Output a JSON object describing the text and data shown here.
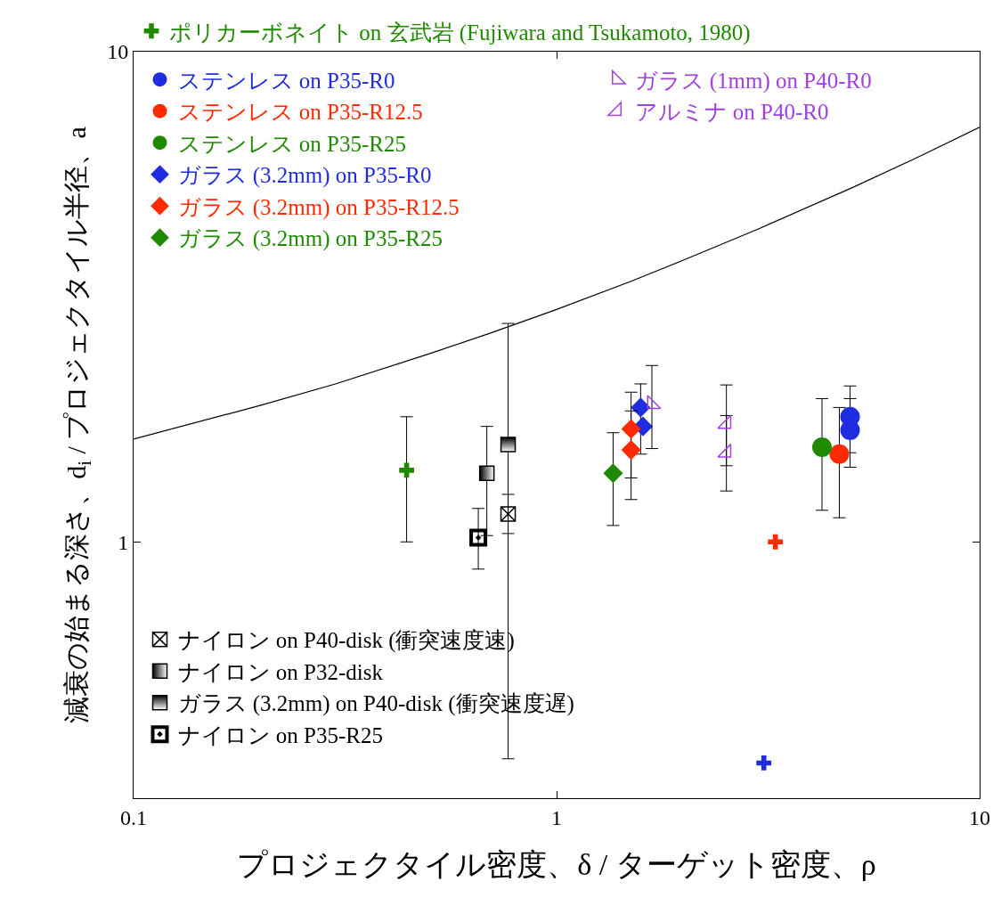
{
  "chart_data": {
    "type": "scatter",
    "xlabel": "プロジェクタイル密度、δ / ターゲット密度、ρ",
    "ylabel": "減衰の始まる深さ、d$_{i}$ / プロジェクタイル半径、a",
    "log": "xy",
    "legend": "top left",
    "xlim": [
      0.1,
      10
    ],
    "xticks": [
      0.1,
      1,
      10
    ],
    "ylim": [
      0.3,
      10
    ],
    "yticks": [
      1,
      10
    ],
    "series": [
      {
        "name": "ステンレス on P35-R0",
        "color": "#1f2ce0",
        "marker": "circle",
        "x": [
          4.94,
          4.94
        ],
        "values": [
          1.8,
          1.69
        ],
        "errors": [
          [
            1.52,
            2.08
          ],
          [
            1.42,
            1.96
          ]
        ]
      },
      {
        "name": "ステンレス on P35-R12.5",
        "color": "#ff2a00",
        "marker": "circle",
        "x": [
          4.66
        ],
        "values": [
          1.51
        ],
        "errors": [
          [
            1.12,
            1.88
          ]
        ]
      },
      {
        "name": "ステンレス on P35-R25",
        "color": "#1f8a00",
        "marker": "circle",
        "x": [
          4.24
        ],
        "values": [
          1.56
        ],
        "errors": [
          [
            1.16,
            1.96
          ]
        ]
      },
      {
        "name": "ガラス (3.2mm) on P35-R0",
        "color": "#1f2ce0",
        "marker": "diamond",
        "x": [
          1.58,
          1.6
        ],
        "values": [
          1.88,
          1.72
        ],
        "errors": [
          [
            1.51,
            2.1
          ],
          null
        ]
      },
      {
        "name": "ガラス (3.2mm) on P35-R12.5",
        "color": "#ff2a00",
        "marker": "diamond",
        "x": [
          1.5,
          1.5
        ],
        "values": [
          1.7,
          1.54
        ],
        "errors": [
          [
            1.35,
            2.02
          ],
          [
            1.22,
            1.85
          ]
        ]
      },
      {
        "name": "ガラス (3.2mm) on P35-R25",
        "color": "#1f8a00",
        "marker": "diamond",
        "x": [
          1.36
        ],
        "values": [
          1.38
        ],
        "errors": [
          [
            1.08,
            1.67
          ]
        ]
      },
      {
        "name": "ガラス (1mm) on P40-R0",
        "color": "#a040e0",
        "marker": "triangle-sw-open",
        "x": [
          1.68
        ],
        "values": [
          1.91
        ],
        "errors": [
          [
            1.55,
            2.29
          ]
        ]
      },
      {
        "name": "アルミナ on P40-R0",
        "color": "#a040e0",
        "marker": "triangle-se-open",
        "x": [
          2.52,
          2.52
        ],
        "values": [
          1.74,
          1.52
        ],
        "errors": [
          [
            1.43,
            2.09
          ],
          [
            1.27,
            1.81
          ]
        ]
      },
      {
        "name": "ナイロン on P40-disk (衝突速度速)",
        "color": "#000000",
        "x": [
          0.768
        ],
        "values": [
          1.14
        ],
        "errors": [
          [
            1.04,
            1.25
          ]
        ]
      },
      {
        "name": "ナイロン on P32-disk",
        "color": "#000000",
        "marker": "square",
        "x": [
          0.684
        ],
        "values": [
          1.38
        ],
        "errors": [
          [
            1.03,
            1.72
          ]
        ]
      },
      {
        "name": "ガラス (3.2mm) on P40-disk (衝突速度遅)",
        "color": "#000000",
        "marker": "square",
        "x": [
          0.768
        ],
        "values": [
          1.58
        ],
        "errors": [
          [
            0.361,
            2.79
          ]
        ]
      },
      {
        "name": "ナイロン on P35-R25",
        "color": "#000000",
        "marker": "square",
        "x": [
          0.653
        ],
        "values": [
          1.02
        ],
        "errors": [
          [
            0.88,
            1.17
          ]
        ]
      },
      {
        "name": "ポリカーボネイト on 玄武岩 (Fujiwara and Tsukamoto, 1980)",
        "color": "#1f8a00",
        "marker": "cross",
        "x": [
          0.442
        ],
        "values": [
          1.4
        ],
        "errors": [
          [
            1.0,
            1.8
          ]
        ]
      },
      {
        "color": "#ff2a00",
        "marker": "cross",
        "x": [
          3.29
        ],
        "values": [
          1.0
        ]
      },
      {
        "color": "#1f2ce0",
        "marker": "cross",
        "x": [
          3.09
        ],
        "values": [
          0.354
        ]
      },
      {
        "type": "line",
        "color": "#000000",
        "marker": "none",
        "x": [
          0.1,
          0.2,
          0.3,
          0.5,
          0.7,
          1,
          1.5,
          2,
          3,
          5,
          7,
          10
        ],
        "values": [
          1.62,
          1.9,
          2.1,
          2.42,
          2.67,
          2.98,
          3.4,
          3.76,
          4.35,
          5.28,
          6.04,
          7.01
        ]
      }
    ]
  }
}
